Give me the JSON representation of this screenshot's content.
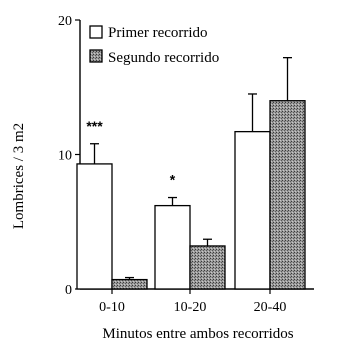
{
  "chart_data": {
    "type": "bar",
    "xlabel": "Minutos entre ambos recorridos",
    "ylabel": "Lombrices / 3 m2",
    "ylim": [
      0,
      20
    ],
    "yticks": [
      0,
      10,
      20
    ],
    "categories": [
      "0-10",
      "10-20",
      "20-40"
    ],
    "series": [
      {
        "name": "Primer recorrido",
        "values": [
          9.3,
          6.2,
          11.7
        ],
        "error_upper": [
          10.8,
          6.8,
          14.5
        ]
      },
      {
        "name": "Segundo recorrido",
        "values": [
          0.7,
          3.2,
          14.0
        ],
        "error_upper": [
          0.85,
          3.7,
          17.2
        ]
      }
    ],
    "annotations": [
      {
        "text": "***",
        "category": "0-10",
        "y": 12.2
      },
      {
        "text": "*",
        "category": "10-20",
        "y": 8.2
      }
    ],
    "legend_position": "top-left",
    "grid": false
  }
}
